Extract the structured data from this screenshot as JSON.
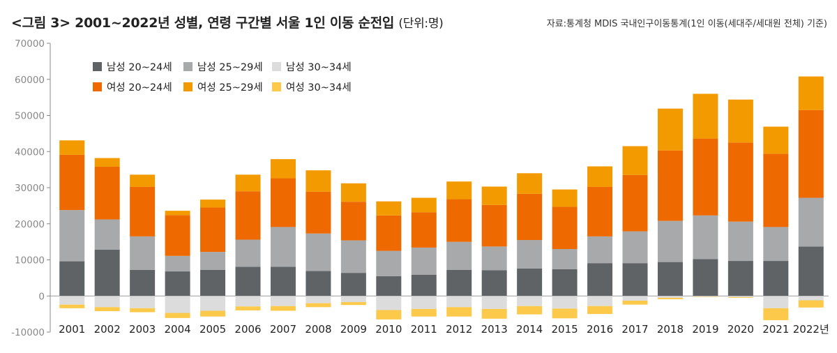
{
  "header": {
    "title_prefix": "<그림 3> 2001~2022년 성별, 연령 구간별 서울 1인 이동 순전입",
    "title_unit": "(단위:명)",
    "source": "자료:통계청 MDIS 국내인구이동통계(1인 이동(세대주/세대원 전체) 기준)"
  },
  "chart_data": {
    "type": "bar",
    "stacked": true,
    "title": "<그림 3> 2001~2022년 성별, 연령 구간별 서울 1인 이동 순전입",
    "unit": "(단위:명)",
    "xlabel": "",
    "ylabel": "",
    "ylim": [
      -10000,
      70000
    ],
    "yticks": [
      70000,
      60000,
      50000,
      40000,
      30000,
      20000,
      10000,
      0,
      -10000
    ],
    "grid": false,
    "legend_position": "top-left",
    "categories": [
      "2001",
      "2002",
      "2003",
      "2004",
      "2005",
      "2006",
      "2007",
      "2008",
      "2009",
      "2010",
      "2011",
      "2012",
      "2013",
      "2014",
      "2015",
      "2016",
      "2017",
      "2018",
      "2019",
      "2020",
      "2021",
      "2022년"
    ],
    "series": [
      {
        "name": "남성 20~24세",
        "color": "#5f6366",
        "values": [
          9600,
          12800,
          7200,
          6800,
          7200,
          8100,
          8100,
          6900,
          6400,
          5500,
          5900,
          7200,
          7100,
          7600,
          7400,
          9100,
          9100,
          9400,
          10200,
          9700,
          9700,
          13700
        ]
      },
      {
        "name": "남성 25~29세",
        "color": "#a8a9ab",
        "values": [
          14200,
          8400,
          9300,
          4300,
          5000,
          7500,
          11000,
          10400,
          9000,
          7000,
          7500,
          7800,
          6600,
          7900,
          5600,
          7400,
          8800,
          11400,
          12100,
          10900,
          9400,
          13500
        ]
      },
      {
        "name": "남성 30~34세",
        "color": "#dcdcdd",
        "values": [
          -2400,
          -3100,
          -3400,
          -4700,
          -4100,
          -2900,
          -2800,
          -2000,
          -1700,
          -3900,
          -3600,
          -3100,
          -3600,
          -2800,
          -3500,
          -2800,
          -1300,
          -500,
          -200,
          -300,
          -3400,
          -1200
        ]
      },
      {
        "name": "여성 20~24세",
        "color": "#ee6a00",
        "values": [
          15300,
          14600,
          13700,
          11300,
          12300,
          13400,
          13500,
          11600,
          10700,
          9800,
          9800,
          11800,
          11500,
          12800,
          11700,
          13700,
          15600,
          19500,
          21300,
          21900,
          20300,
          24300
        ]
      },
      {
        "name": "여성 25~29세",
        "color": "#f29a00",
        "values": [
          4000,
          2400,
          3400,
          1200,
          2200,
          4600,
          5300,
          5900,
          5100,
          3900,
          4000,
          4900,
          5100,
          5700,
          4800,
          5700,
          8000,
          11600,
          12400,
          11900,
          7500,
          9300
        ]
      },
      {
        "name": "여성 30~34세",
        "color": "#fdc94b",
        "values": [
          -1000,
          -1100,
          -1100,
          -1400,
          -1600,
          -1100,
          -1300,
          -1100,
          -800,
          -2600,
          -2100,
          -2600,
          -2700,
          -2300,
          -2700,
          -2200,
          -1100,
          -400,
          -100,
          -200,
          -3300,
          -2000
        ]
      }
    ]
  }
}
